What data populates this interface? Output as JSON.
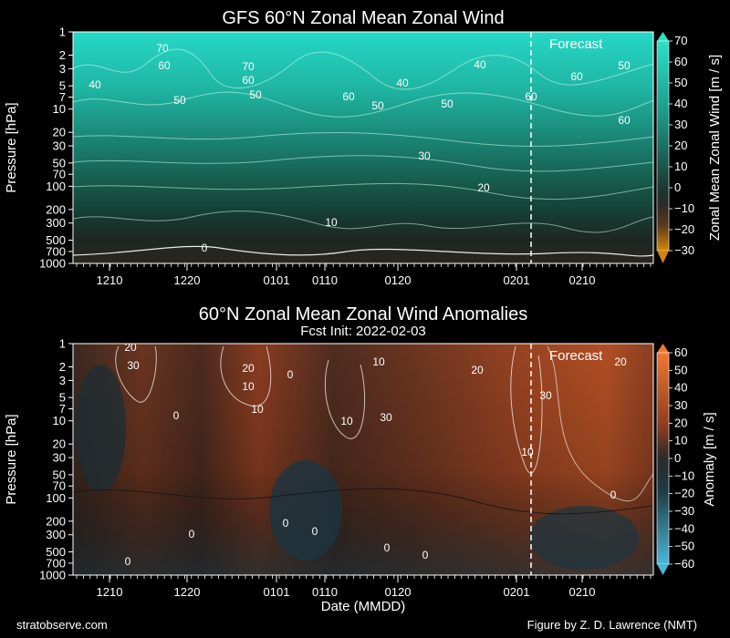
{
  "chart_data": [
    {
      "type": "heatmap",
      "title": "GFS 60°N Zonal Mean Zonal Wind",
      "ylabel": "Pressure [hPa]",
      "y_ticks": [
        "1",
        "2",
        "3",
        "5",
        "7",
        "10",
        "20",
        "30",
        "50",
        "70",
        "100",
        "200",
        "300",
        "500",
        "700",
        "1000"
      ],
      "y_values": [
        1,
        2,
        3,
        5,
        7,
        10,
        20,
        30,
        50,
        70,
        100,
        200,
        300,
        500,
        700,
        1000
      ],
      "x_ticks": [
        "1210",
        "1220",
        "0101",
        "0110",
        "0120",
        "0201",
        "0210"
      ],
      "colorbar_label": "Zonal Mean Zonal Wind [m / s]",
      "colorbar_ticks": [
        "70",
        "60",
        "50",
        "40",
        "30",
        "20",
        "10",
        "0",
        "−10",
        "−20",
        "−30"
      ],
      "colorbar_values": [
        70,
        60,
        50,
        40,
        30,
        20,
        10,
        0,
        -10,
        -20,
        -30
      ],
      "annotation": "Forecast",
      "contour_labels": [
        "70",
        "60",
        "40",
        "70",
        "60",
        "50",
        "50",
        "60",
        "50",
        "40",
        "50",
        "40",
        "60",
        "60",
        "50",
        "60",
        "30",
        "20",
        "10",
        "0"
      ],
      "colors": {
        "high": "#2ee0c8",
        "mid": "#1a6a5e",
        "zero": "#2a2a2a",
        "low": "#d4860a"
      }
    },
    {
      "type": "heatmap",
      "title": "60°N Zonal Mean Zonal Wind Anomalies",
      "subtitle": "Fcst Init: 2022-02-03",
      "xlabel": "Date (MMDD)",
      "ylabel": "Pressure [hPa]",
      "y_ticks": [
        "1",
        "2",
        "3",
        "5",
        "7",
        "10",
        "20",
        "30",
        "50",
        "70",
        "100",
        "200",
        "300",
        "500",
        "700",
        "1000"
      ],
      "y_values": [
        1,
        2,
        3,
        5,
        7,
        10,
        20,
        30,
        50,
        70,
        100,
        200,
        300,
        500,
        700,
        1000
      ],
      "x_ticks": [
        "1210",
        "1220",
        "0101",
        "0110",
        "0120",
        "0201",
        "0210"
      ],
      "colorbar_label": "Anomaly [m / s]",
      "colorbar_ticks": [
        "60",
        "50",
        "40",
        "30",
        "20",
        "10",
        "0",
        "−10",
        "−20",
        "−30",
        "−40",
        "−50",
        "−60"
      ],
      "colorbar_values": [
        60,
        50,
        40,
        30,
        20,
        10,
        0,
        -10,
        -20,
        -30,
        -40,
        -50,
        -60
      ],
      "annotation": "Forecast",
      "contour_labels": [
        "20",
        "30",
        "20",
        "10",
        "10",
        "0",
        "0",
        "10",
        "20",
        "10",
        "30",
        "30",
        "20",
        "10",
        "0",
        "0",
        "0",
        "0",
        "0",
        "0",
        "0"
      ],
      "colors": {
        "high": "#e8682a",
        "mid": "#5a2e20",
        "zero": "#2a2a2a",
        "low": "#4ab0d0"
      }
    }
  ],
  "footer": {
    "left": "stratobserve.com",
    "right": "Figure by Z. D. Lawrence (NMT)"
  }
}
